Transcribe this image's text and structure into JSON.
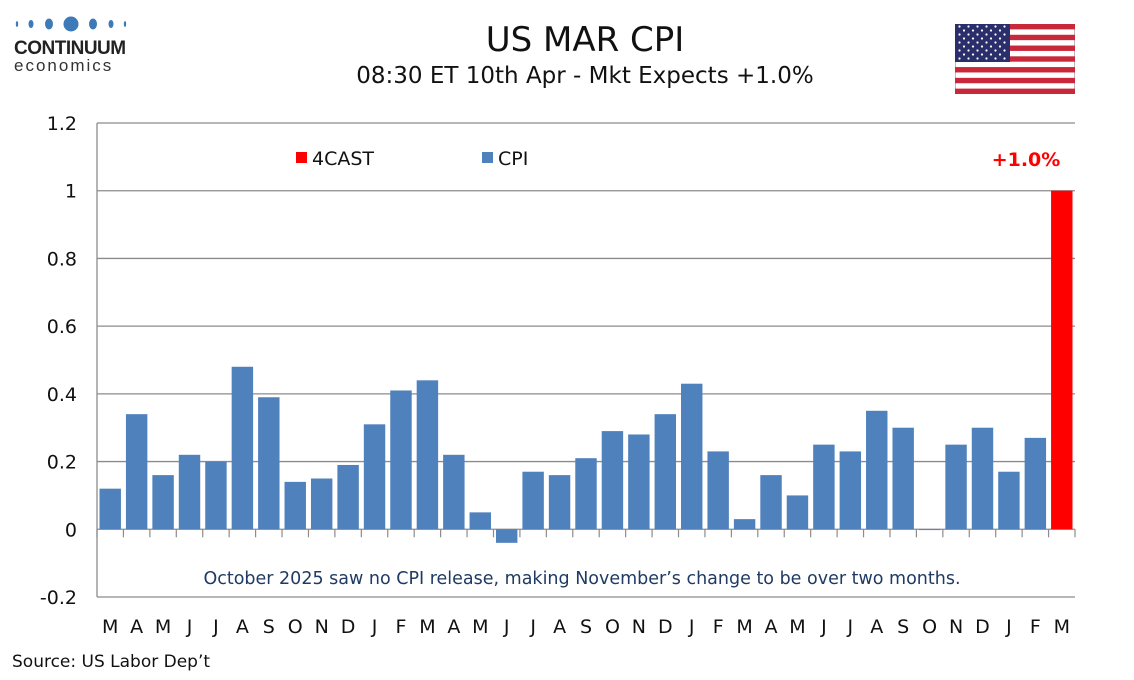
{
  "header": {
    "title": "US MAR CPI",
    "subtitle": "08:30 ET 10th Apr - Mkt Expects +1.0%"
  },
  "logo": {
    "line1": "CONTINUUM",
    "line2": "economics",
    "color": "#3d7ab8"
  },
  "flag": "us-flag",
  "source": "Source: US Labor Dep’t",
  "chart_data": {
    "type": "bar",
    "categories": [
      "M",
      "A",
      "M",
      "J",
      "J",
      "A",
      "S",
      "O",
      "N",
      "D",
      "J",
      "F",
      "M",
      "A",
      "M",
      "J",
      "J",
      "A",
      "S",
      "O",
      "N",
      "D",
      "J",
      "F",
      "M",
      "A",
      "M",
      "J",
      "J",
      "A",
      "S",
      "O",
      "N",
      "D",
      "J",
      "F",
      "M"
    ],
    "series": [
      {
        "name": "CPI",
        "color": "#4f81bd",
        "values": [
          0.12,
          0.34,
          0.16,
          0.22,
          0.2,
          0.48,
          0.39,
          0.14,
          0.15,
          0.19,
          0.31,
          0.41,
          0.44,
          0.22,
          0.05,
          -0.04,
          0.17,
          0.16,
          0.21,
          0.29,
          0.28,
          0.34,
          0.43,
          0.23,
          0.03,
          0.16,
          0.1,
          0.25,
          0.23,
          0.35,
          0.3,
          0,
          0.25,
          0.3,
          0.17,
          0.27,
          null
        ]
      },
      {
        "name": "4CAST",
        "color": "#ff0000",
        "values": [
          null,
          null,
          null,
          null,
          null,
          null,
          null,
          null,
          null,
          null,
          null,
          null,
          null,
          null,
          null,
          null,
          null,
          null,
          null,
          null,
          null,
          null,
          null,
          null,
          null,
          null,
          null,
          null,
          null,
          null,
          null,
          null,
          null,
          null,
          null,
          null,
          1.0
        ]
      }
    ],
    "legend_order": [
      "4CAST",
      "CPI"
    ],
    "ylim": [
      -0.2,
      1.2
    ],
    "yticks": [
      "1.2",
      "1",
      "0.8",
      "0.6",
      "0.4",
      "0.2",
      "0",
      "-0.2"
    ],
    "ytick_values": [
      1.2,
      1,
      0.8,
      0.6,
      0.4,
      0.2,
      0,
      -0.2
    ],
    "grid": true,
    "legend_placement": "top",
    "annotations": {
      "forecast_label": "+1.0%",
      "note": "October 2025 saw no CPI release, making November’s change to be over two months."
    }
  }
}
